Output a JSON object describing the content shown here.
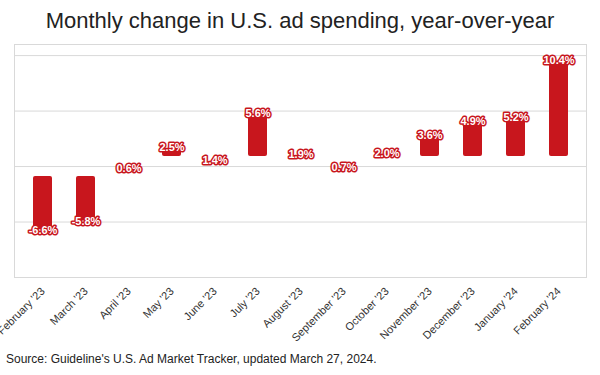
{
  "chart_data": {
    "type": "bar",
    "title": "Monthly change in U.S. ad spending, year-over-year",
    "caption": "Source: Guideline's U.S. Ad Market Tracker, updated March 27, 2024.",
    "categories": [
      "February '23",
      "March '23",
      "April '23",
      "May '23",
      "June '23",
      "July '23",
      "August '23",
      "September '23",
      "October '23",
      "November '23",
      "December '23",
      "January '24",
      "February '24"
    ],
    "values": [
      -6.6,
      -5.8,
      0.6,
      2.5,
      1.4,
      5.6,
      1.9,
      0.7,
      2.0,
      3.6,
      4.9,
      5.2,
      10.4
    ],
    "value_labels": [
      "-6.6%",
      "-5.8%",
      "0.6%",
      "2.5%",
      "1.4%",
      "5.6%",
      "1.9%",
      "0.7%",
      "2.0%",
      "3.6%",
      "4.9%",
      "5.2%",
      "10.4%"
    ],
    "color": "#c8161d",
    "ylim": [
      -10,
      11
    ],
    "yticks": [
      -10,
      -5,
      0,
      5,
      10
    ],
    "grid": true,
    "data_labels": true,
    "tick_labels": "x"
  }
}
